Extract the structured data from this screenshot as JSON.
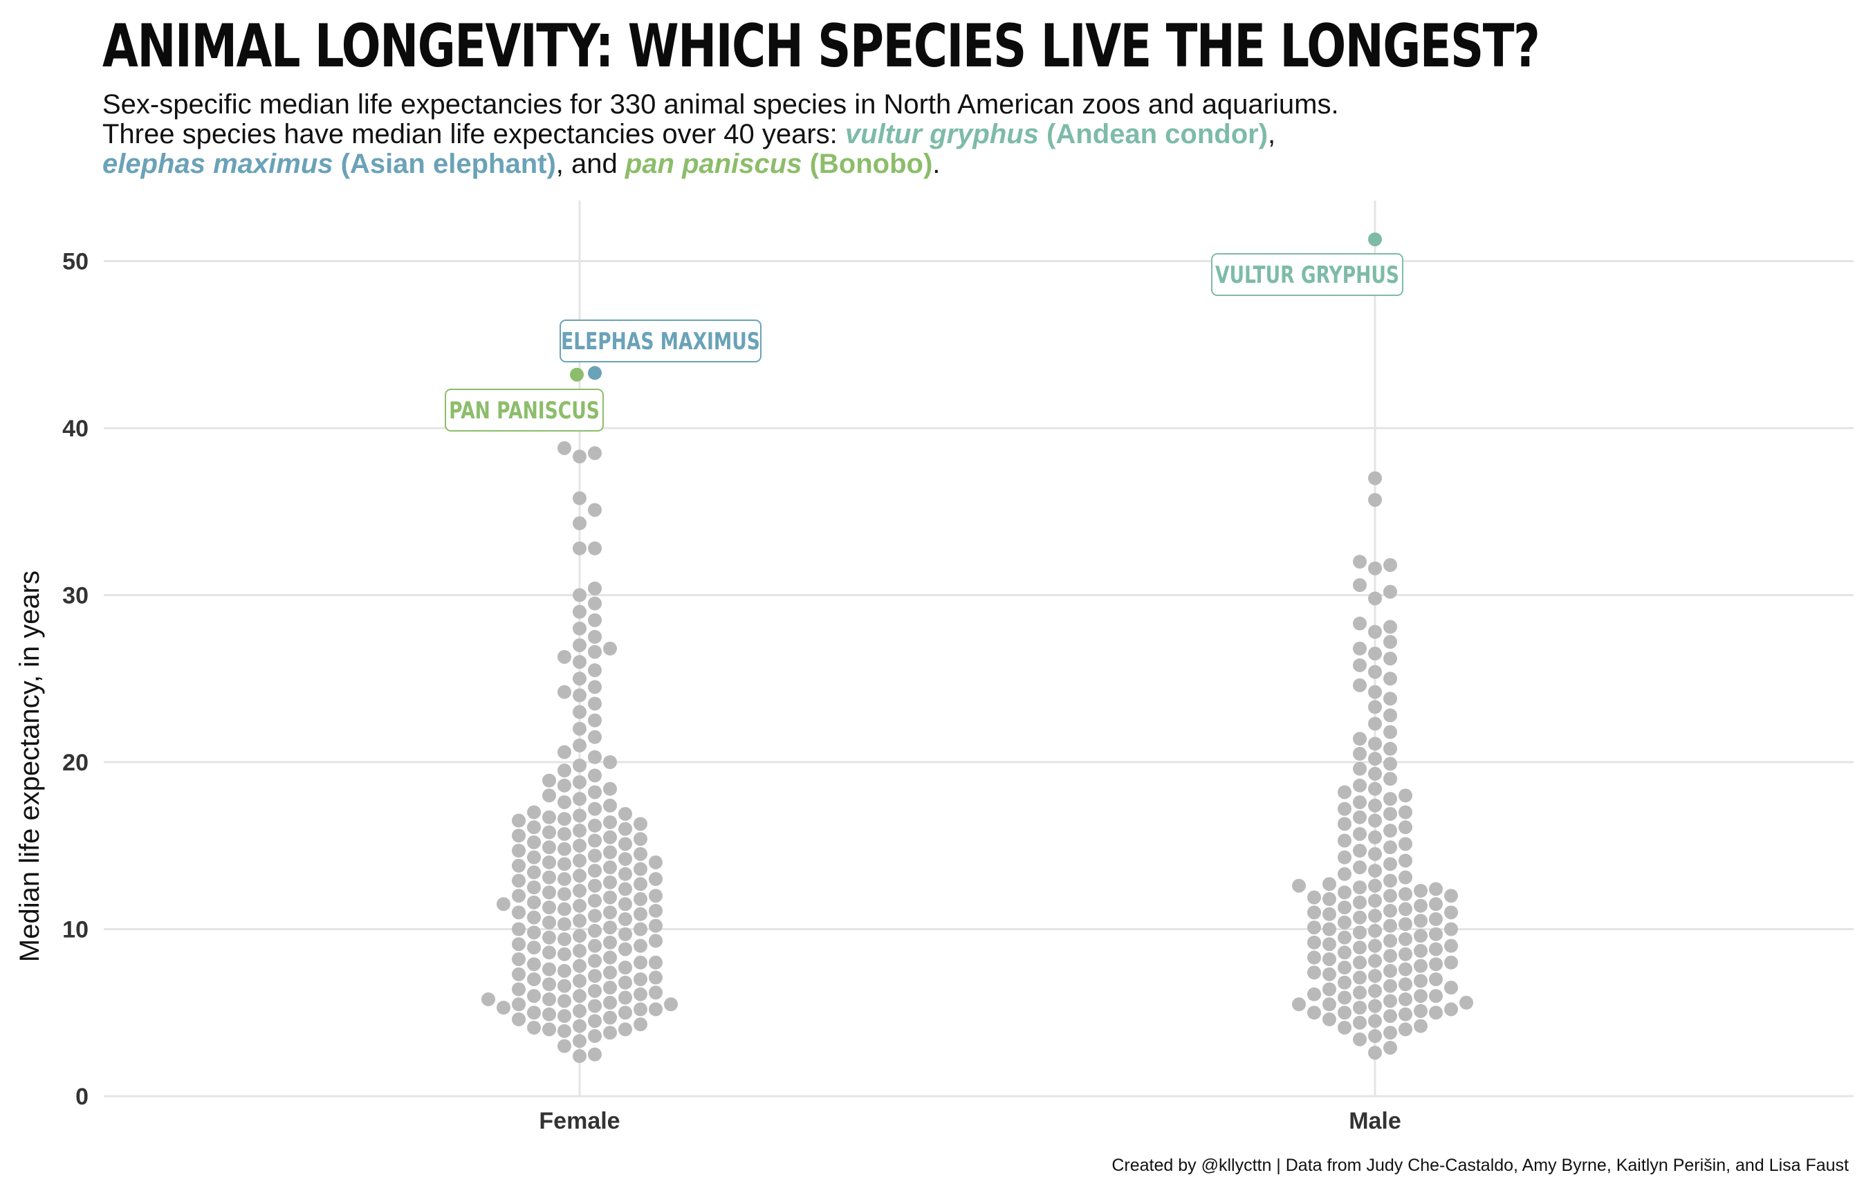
{
  "title": "ANIMAL LONGEVITY: WHICH SPECIES LIVE THE LONGEST?",
  "subtitle": {
    "line1": "Sex-specific median life expectancies for 330 animal species in North American zoos and aquariums.",
    "line2_prefix": "Three species have median life expectancies over 40 years: ",
    "condor_sci": "vultur gryphus",
    "condor_common": " (Andean condor)",
    "sep1": ",",
    "elephant_sci": "elephas maximus",
    "elephant_common": " (Asian elephant)",
    "sep2": ", and ",
    "bonobo_sci": "pan paniscus",
    "bonobo_common": " (Bonobo)",
    "end": "."
  },
  "caption": "Created by @kllycttn | Data from Judy Che-Castaldo, Amy Byrne, Kaitlyn Perišin, and Lisa Faust",
  "colors": {
    "condor": "#7dbba8",
    "elephant": "#6aa2b8",
    "bonobo": "#8cbd6a",
    "dots": "#b9b9b9",
    "grid": "#e4e4e4"
  },
  "chart_data": {
    "type": "scatter",
    "subtype": "beeswarm",
    "categories": [
      "Female",
      "Male"
    ],
    "ylabel": "Median life expectancy, in years",
    "xlabel": "",
    "ylim": [
      0,
      53
    ],
    "yticks": [
      0,
      10,
      20,
      30,
      40,
      50
    ],
    "grid": true,
    "series": [
      {
        "category": "Female",
        "values": [
          2.4,
          2.5,
          3.0,
          3.3,
          3.6,
          3.8,
          3.9,
          4.0,
          4.0,
          4.1,
          4.2,
          4.3,
          4.5,
          4.6,
          4.7,
          4.8,
          4.9,
          5.0,
          5.0,
          5.1,
          5.2,
          5.2,
          5.3,
          5.4,
          5.5,
          5.5,
          5.6,
          5.7,
          5.8,
          5.8,
          5.9,
          6.0,
          6.0,
          6.1,
          6.2,
          6.3,
          6.4,
          6.5,
          6.6,
          6.7,
          6.8,
          6.9,
          7.0,
          7.0,
          7.1,
          7.2,
          7.3,
          7.4,
          7.5,
          7.6,
          7.7,
          7.8,
          7.9,
          8.0,
          8.0,
          8.1,
          8.2,
          8.3,
          8.5,
          8.6,
          8.7,
          8.8,
          8.9,
          9.0,
          9.0,
          9.1,
          9.2,
          9.3,
          9.4,
          9.5,
          9.6,
          9.7,
          9.8,
          9.9,
          10.0,
          10.0,
          10.1,
          10.2,
          10.3,
          10.4,
          10.5,
          10.6,
          10.7,
          10.8,
          10.9,
          11.0,
          11.0,
          11.1,
          11.2,
          11.3,
          11.4,
          11.5,
          11.5,
          11.6,
          11.7,
          11.8,
          11.9,
          12.0,
          12.0,
          12.1,
          12.2,
          12.3,
          12.4,
          12.5,
          12.6,
          12.7,
          12.8,
          12.9,
          13.0,
          13.0,
          13.1,
          13.2,
          13.3,
          13.4,
          13.5,
          13.6,
          13.7,
          13.8,
          13.9,
          14.0,
          14.0,
          14.1,
          14.2,
          14.3,
          14.4,
          14.5,
          14.6,
          14.7,
          14.8,
          14.9,
          15.0,
          15.1,
          15.2,
          15.3,
          15.4,
          15.5,
          15.6,
          15.7,
          15.8,
          15.9,
          16.0,
          16.1,
          16.2,
          16.3,
          16.4,
          16.5,
          16.6,
          16.7,
          16.8,
          16.9,
          17.0,
          17.2,
          17.4,
          17.6,
          17.8,
          18.0,
          18.2,
          18.4,
          18.6,
          18.8,
          18.9,
          19.2,
          19.5,
          19.8,
          20.0,
          20.3,
          20.6,
          21.0,
          21.5,
          22.0,
          22.5,
          23.0,
          23.5,
          24.0,
          24.2,
          24.5,
          25.0,
          25.5,
          26.0,
          26.3,
          26.6,
          26.8,
          27.0,
          27.5,
          28.0,
          28.5,
          29.0,
          29.5,
          30.0,
          30.4,
          32.8,
          32.8,
          34.3,
          35.1,
          35.8,
          38.3,
          38.5,
          38.8
        ],
        "highlights": [
          {
            "label": "PAN PANISCUS",
            "value": 43.2,
            "color_key": "bonobo"
          },
          {
            "label": "ELEPHAS MAXIMUS",
            "value": 43.3,
            "color_key": "elephant"
          }
        ]
      },
      {
        "category": "Male",
        "values": [
          2.6,
          2.9,
          3.4,
          3.6,
          3.8,
          4.0,
          4.1,
          4.2,
          4.4,
          4.5,
          4.6,
          4.8,
          4.9,
          5.0,
          5.0,
          5.0,
          5.1,
          5.2,
          5.3,
          5.4,
          5.5,
          5.5,
          5.6,
          5.7,
          5.8,
          5.9,
          6.0,
          6.0,
          6.1,
          6.2,
          6.3,
          6.4,
          6.5,
          6.6,
          6.7,
          6.8,
          6.9,
          7.0,
          7.1,
          7.2,
          7.3,
          7.4,
          7.5,
          7.6,
          7.7,
          7.8,
          7.9,
          8.0,
          8.0,
          8.1,
          8.2,
          8.3,
          8.4,
          8.5,
          8.6,
          8.7,
          8.8,
          8.9,
          9.0,
          9.0,
          9.1,
          9.2,
          9.3,
          9.4,
          9.5,
          9.6,
          9.7,
          9.8,
          9.9,
          10.0,
          10.0,
          10.1,
          10.2,
          10.3,
          10.4,
          10.5,
          10.6,
          10.7,
          10.8,
          10.9,
          11.0,
          11.0,
          11.1,
          11.2,
          11.3,
          11.4,
          11.5,
          11.6,
          11.7,
          11.8,
          11.9,
          12.0,
          12.0,
          12.1,
          12.2,
          12.3,
          12.4,
          12.5,
          12.6,
          12.6,
          12.7,
          12.9,
          13.1,
          13.3,
          13.5,
          13.7,
          13.9,
          14.1,
          14.3,
          14.5,
          14.7,
          14.9,
          15.1,
          15.3,
          15.5,
          15.7,
          15.9,
          16.1,
          16.3,
          16.5,
          16.7,
          16.9,
          17.0,
          17.2,
          17.4,
          17.6,
          17.8,
          18.0,
          18.2,
          18.4,
          18.6,
          19.0,
          19.3,
          19.6,
          19.9,
          20.2,
          20.5,
          20.8,
          21.1,
          21.4,
          21.8,
          22.3,
          22.8,
          23.3,
          23.8,
          24.2,
          24.6,
          25.0,
          25.4,
          25.8,
          26.2,
          26.5,
          26.8,
          27.2,
          27.8,
          28.1,
          28.3,
          29.8,
          30.2,
          30.6,
          31.6,
          31.8,
          32.0,
          35.7,
          37.0
        ],
        "highlights": [
          {
            "label": "VULTUR GRYPHUS",
            "value": 51.3,
            "color_key": "condor"
          }
        ]
      }
    ]
  }
}
